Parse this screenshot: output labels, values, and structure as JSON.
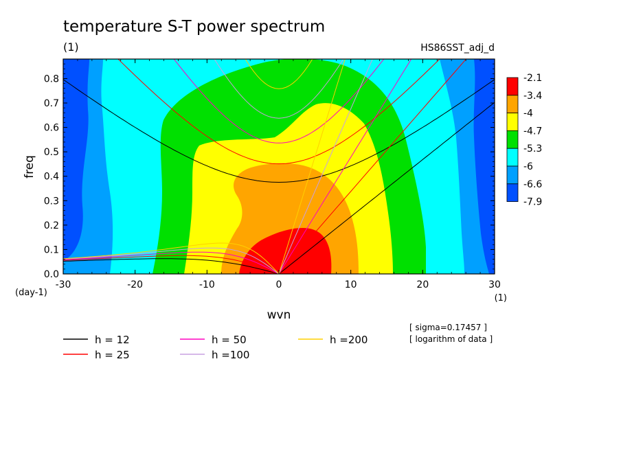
{
  "chart_data": {
    "type": "heatmap",
    "title": "temperature S-T power spectrum",
    "subtitle_left": "(1)",
    "subtitle_right": "HS86SST_adj_d",
    "xlabel": "wvn",
    "ylabel": "freq",
    "x_unit": "(1)",
    "y_unit": "(day-1)",
    "xlim": [
      -30,
      30
    ],
    "ylim": [
      0,
      0.88
    ],
    "xticks": [
      -30,
      -20,
      -10,
      0,
      10,
      20,
      30
    ],
    "yticks": [
      0.0,
      0.1,
      0.2,
      0.3,
      0.4,
      0.5,
      0.6,
      0.7,
      0.8
    ],
    "tick_labels_x": [
      "-30",
      "-20",
      "-10",
      "0",
      "10",
      "20",
      "30"
    ],
    "tick_labels_y": [
      "0.0",
      "0.1",
      "0.2",
      "0.3",
      "0.4",
      "0.5",
      "0.6",
      "0.7",
      "0.8"
    ],
    "colorbar": {
      "colors": [
        "#ff0000",
        "#ffa500",
        "#ffff00",
        "#00e000",
        "#00ffff",
        "#00a0ff",
        "#0050ff"
      ],
      "labels": [
        "-2.1",
        "-3.4",
        "-4",
        "-4.7",
        "-5.3",
        "-6",
        "-6.6",
        "-7.9"
      ]
    },
    "legend": [
      {
        "label": "h = 12",
        "color": "#000000",
        "h": 12
      },
      {
        "label": "h = 25",
        "color": "#ff0000",
        "h": 25
      },
      {
        "label": "h = 50",
        "color": "#ff00c0",
        "h": 50
      },
      {
        "label": "h =100",
        "color": "#c8a0e0",
        "h": 100
      },
      {
        "label": "h =200",
        "color": "#ffd000",
        "h": 200
      }
    ],
    "notes": [
      "[ sigma=0.17457 ]",
      "[ logarithm of data ]"
    ]
  }
}
